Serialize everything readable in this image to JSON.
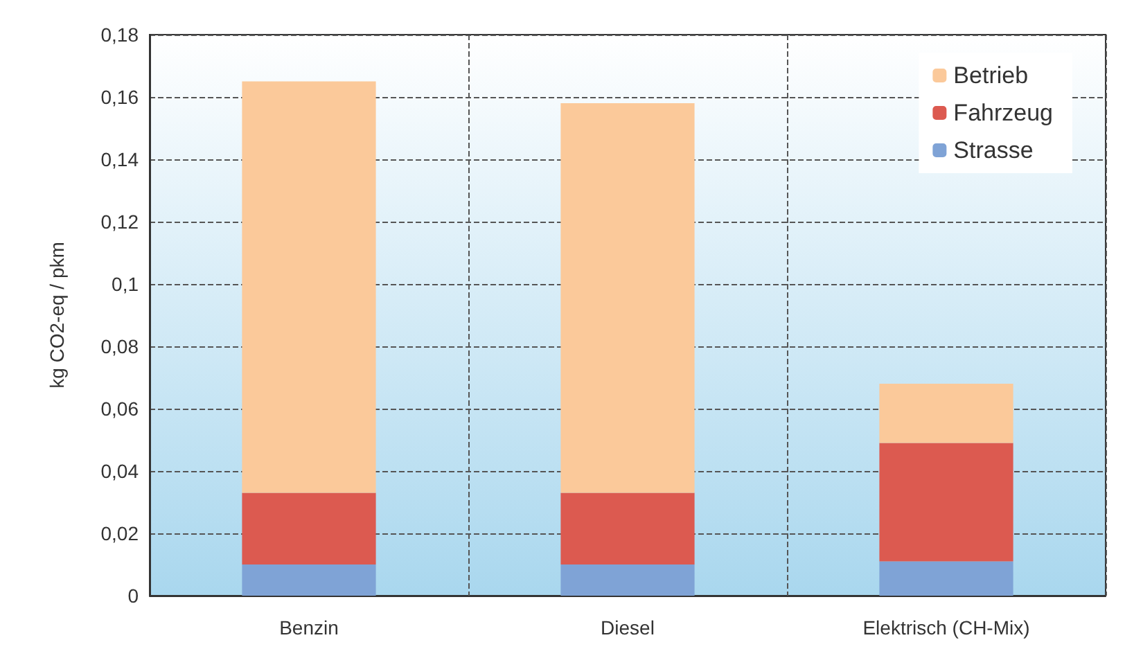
{
  "chart_data": {
    "type": "bar",
    "stacked": true,
    "ylabel": "kg CO2-eq / pkm",
    "categories": [
      "Benzin",
      "Diesel",
      "Elektrisch (CH-Mix)"
    ],
    "series": [
      {
        "name": "Strasse",
        "color": "#7fa3d6",
        "values": [
          0.01,
          0.01,
          0.011
        ]
      },
      {
        "name": "Fahrzeug",
        "color": "#dc5a50",
        "values": [
          0.023,
          0.023,
          0.038
        ]
      },
      {
        "name": "Betrieb",
        "color": "#fbc99a",
        "values": [
          0.132,
          0.125,
          0.019
        ]
      }
    ],
    "ylim": [
      0,
      0.18
    ],
    "yticks": [
      0,
      {
        "value": 0.02,
        "label": "0,02"
      },
      {
        "value": 0.04,
        "label": "0,04"
      },
      {
        "value": 0.06,
        "label": "0,06"
      },
      {
        "value": 0.08,
        "label": "0,08"
      },
      {
        "value": 0.1,
        "label": "0,1"
      },
      {
        "value": 0.12,
        "label": "0,12"
      },
      {
        "value": 0.14,
        "label": "0,14"
      },
      {
        "value": 0.16,
        "label": "0,16"
      },
      {
        "value": 0.18,
        "label": "0,18"
      }
    ],
    "grid": true,
    "legend": "top right"
  }
}
